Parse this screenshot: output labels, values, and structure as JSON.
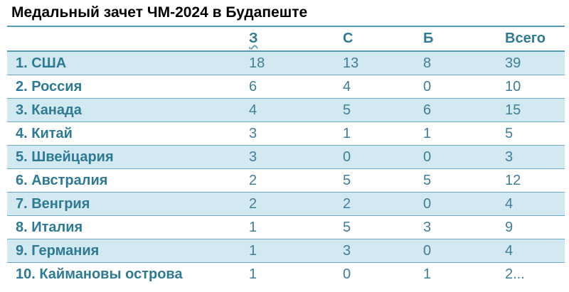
{
  "title": "Медальный зачет ЧМ-2024 в Будапеште",
  "headers": {
    "name": "",
    "gold": "З",
    "silver": "С",
    "bronze": "Б",
    "total": "Всего"
  },
  "rows": [
    {
      "name": "1. США",
      "gold": "18",
      "silver": "13",
      "bronze": "8",
      "total": "39"
    },
    {
      "name": "2. Россия",
      "gold": "6",
      "silver": "4",
      "bronze": "0",
      "total": "10"
    },
    {
      "name": "3. Канада",
      "gold": "4",
      "silver": "5",
      "bronze": "6",
      "total": "15"
    },
    {
      "name": "4. Китай",
      "gold": "3",
      "silver": "1",
      "bronze": "1",
      "total": "5"
    },
    {
      "name": "5. Швейцария",
      "gold": "3",
      "silver": "0",
      "bronze": "0",
      "total": "3"
    },
    {
      "name": "6. Австралия",
      "gold": "2",
      "silver": "5",
      "bronze": "5",
      "total": "12"
    },
    {
      "name": "7. Венгрия",
      "gold": "2",
      "silver": "2",
      "bronze": "0",
      "total": "4"
    },
    {
      "name": "8. Италия",
      "gold": "1",
      "silver": "5",
      "bronze": "3",
      "total": "9"
    },
    {
      "name": "9. Германия",
      "gold": "1",
      "silver": "3",
      "bronze": "0",
      "total": "4"
    },
    {
      "name": "10. Каймановы острова",
      "gold": "1",
      "silver": "0",
      "bronze": "1",
      "total": "2..."
    }
  ]
}
